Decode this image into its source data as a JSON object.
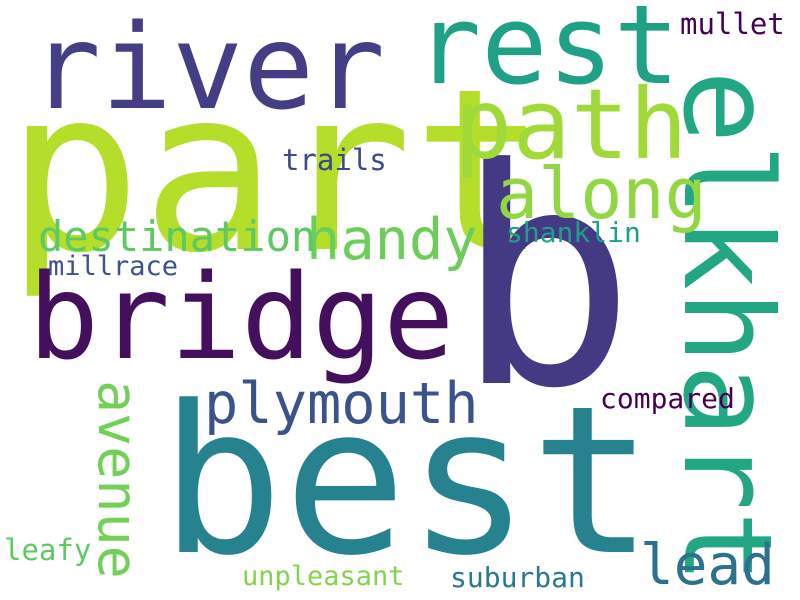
{
  "words": {
    "part": {
      "text": "part",
      "color": "#b5de2b"
    },
    "b": {
      "text": "b",
      "color": "#443983"
    },
    "best": {
      "text": "best",
      "color": "#26828e"
    },
    "river": {
      "text": "river",
      "color": "#433e85"
    },
    "rest": {
      "text": "rest",
      "color": "#1fa187"
    },
    "bridge": {
      "text": "bridge",
      "color": "#440f5c"
    },
    "elkhart": {
      "text": "elkhart",
      "color": "#22a785"
    },
    "path": {
      "text": "path",
      "color": "#a0da39"
    },
    "along": {
      "text": "along",
      "color": "#90d743"
    },
    "handy": {
      "text": "handy",
      "color": "#6ccd5a"
    },
    "plymouth": {
      "text": "plymouth",
      "color": "#3b528b"
    },
    "destination": {
      "text": "destination",
      "color": "#5ec962"
    },
    "avenue": {
      "text": "avenue",
      "color": "#73d056"
    },
    "lead": {
      "text": "lead",
      "color": "#2c728e"
    },
    "mullet": {
      "text": "mullet",
      "color": "#440154"
    },
    "trails": {
      "text": "trails",
      "color": "#3e4989"
    },
    "shanklin": {
      "text": "shanklin",
      "color": "#1f9e89"
    },
    "millrace": {
      "text": "millrace",
      "color": "#3b528b"
    },
    "compared": {
      "text": "compared",
      "color": "#440154"
    },
    "leafy": {
      "text": "leafy",
      "color": "#5ec962"
    },
    "unpleasant": {
      "text": "unpleasant",
      "color": "#84d44b"
    },
    "suburban": {
      "text": "suburban",
      "color": "#2a788e"
    }
  }
}
